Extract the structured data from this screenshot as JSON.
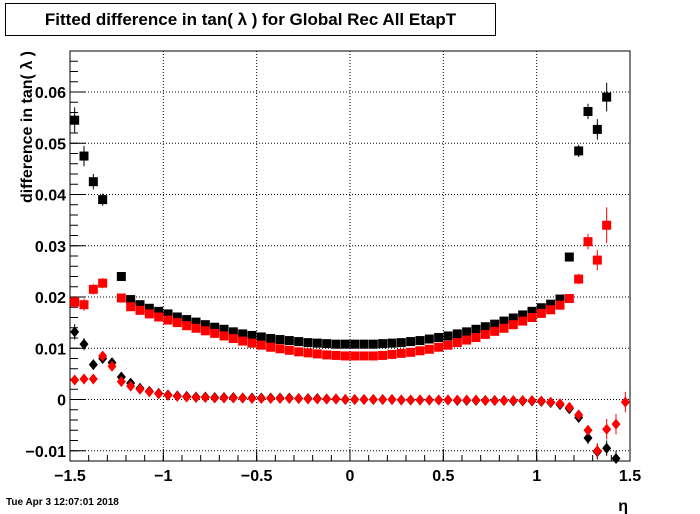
{
  "title": "Fitted difference in tan( λ ) for Global Rec All EtapT",
  "timestamp": "Tue Apr  3 12:07:01 2018",
  "chart_data": {
    "type": "scatter",
    "title": "Fitted difference in tan( λ ) for Global Rec All EtapT",
    "xlabel": "η",
    "ylabel": "difference in tan( λ )",
    "xlim": [
      -1.5,
      1.5
    ],
    "ylim": [
      -0.012,
      0.068
    ],
    "xticks": [
      -1.5,
      -1,
      -0.5,
      0,
      0.5,
      1,
      1.5
    ],
    "xtick_labels": [
      "−1.5",
      "−1",
      "−0.5",
      "0",
      "0.5",
      "1",
      "1.5"
    ],
    "yticks": [
      -0.01,
      0,
      0.01,
      0.02,
      0.03,
      0.04,
      0.05,
      0.06
    ],
    "ytick_labels": [
      "−0.01",
      "0",
      "0.01",
      "0.02",
      "0.03",
      "0.04",
      "0.05",
      "0.06"
    ],
    "grid": true,
    "x": [
      -1.475,
      -1.425,
      -1.375,
      -1.325,
      -1.275,
      -1.225,
      -1.175,
      -1.125,
      -1.075,
      -1.025,
      -0.975,
      -0.925,
      -0.875,
      -0.825,
      -0.775,
      -0.725,
      -0.675,
      -0.625,
      -0.575,
      -0.525,
      -0.475,
      -0.425,
      -0.375,
      -0.325,
      -0.275,
      -0.225,
      -0.175,
      -0.125,
      -0.075,
      -0.025,
      0.025,
      0.075,
      0.125,
      0.175,
      0.225,
      0.275,
      0.325,
      0.375,
      0.425,
      0.475,
      0.525,
      0.575,
      0.625,
      0.675,
      0.725,
      0.775,
      0.825,
      0.875,
      0.925,
      0.975,
      1.025,
      1.075,
      1.125,
      1.175,
      1.225,
      1.275,
      1.325,
      1.375,
      1.425,
      1.475
    ],
    "series": [
      {
        "marker": "square",
        "color": "#000000",
        "values": [
          0.0545,
          0.0475,
          0.0425,
          0.039,
          null,
          0.024,
          0.0195,
          0.0185,
          0.0178,
          0.0172,
          0.0167,
          0.0161,
          0.0156,
          0.0151,
          0.0146,
          0.0141,
          0.0137,
          0.0132,
          0.0128,
          0.0125,
          0.0122,
          0.0119,
          0.0117,
          0.0115,
          0.0113,
          0.0111,
          0.011,
          0.0109,
          0.0108,
          0.0108,
          0.0108,
          0.0108,
          0.0108,
          0.0109,
          0.011,
          0.0111,
          0.0113,
          0.0115,
          0.0118,
          0.0121,
          0.0124,
          0.0128,
          0.0132,
          0.0137,
          0.0142,
          0.0147,
          0.0153,
          0.0159,
          0.0165,
          0.0172,
          0.0179,
          0.0186,
          0.0196,
          0.0278,
          0.0485,
          0.0562,
          0.0527,
          0.059,
          null,
          null
        ],
        "errors": [
          0.0025,
          0.002,
          0.0015,
          0.0012,
          0,
          0.0005,
          0.0003,
          0.0002,
          0.0002,
          0.0002,
          0.0002,
          0.0002,
          0.0002,
          0.0002,
          0.0002,
          0.0002,
          0.0002,
          0.0002,
          0.0002,
          0.0002,
          0.0002,
          0.0002,
          0.0002,
          0.0002,
          0.0002,
          0.0002,
          0.0002,
          0.0002,
          0.0002,
          0.0002,
          0.0002,
          0.0002,
          0.0002,
          0.0002,
          0.0002,
          0.0002,
          0.0002,
          0.0002,
          0.0002,
          0.0002,
          0.0002,
          0.0002,
          0.0002,
          0.0002,
          0.0002,
          0.0002,
          0.0002,
          0.0002,
          0.0002,
          0.0002,
          0.0002,
          0.0002,
          0.0003,
          0.0005,
          0.0012,
          0.0015,
          0.002,
          0.0028,
          0,
          0
        ]
      },
      {
        "marker": "square",
        "color": "#ff0000",
        "values": [
          0.019,
          0.0185,
          0.0215,
          0.0227,
          null,
          0.0198,
          0.0181,
          0.0174,
          0.0167,
          0.0161,
          0.0155,
          0.015,
          0.0144,
          0.0139,
          0.0134,
          0.0129,
          0.0124,
          0.0119,
          0.0114,
          0.011,
          0.0106,
          0.0102,
          0.0099,
          0.0096,
          0.0093,
          0.0091,
          0.0089,
          0.0087,
          0.0086,
          0.0085,
          0.0085,
          0.0085,
          0.0085,
          0.0086,
          0.0088,
          0.009,
          0.0092,
          0.0095,
          0.0098,
          0.0102,
          0.0106,
          0.0111,
          0.0116,
          0.0121,
          0.0127,
          0.0133,
          0.0139,
          0.0146,
          0.0153,
          0.016,
          0.0168,
          0.0175,
          0.0184,
          0.0197,
          0.0235,
          0.0308,
          0.0272,
          0.034,
          null,
          null
        ],
        "errors": [
          0.0012,
          0.0012,
          0.001,
          0.001,
          0,
          0.0005,
          0.0003,
          0.0002,
          0.0002,
          0.0002,
          0.0002,
          0.0002,
          0.0002,
          0.0002,
          0.0002,
          0.0002,
          0.0002,
          0.0002,
          0.0002,
          0.0002,
          0.0002,
          0.0002,
          0.0002,
          0.0002,
          0.0002,
          0.0002,
          0.0002,
          0.0002,
          0.0002,
          0.0002,
          0.0002,
          0.0002,
          0.0002,
          0.0002,
          0.0002,
          0.0002,
          0.0002,
          0.0002,
          0.0002,
          0.0002,
          0.0002,
          0.0002,
          0.0002,
          0.0002,
          0.0002,
          0.0002,
          0.0002,
          0.0002,
          0.0002,
          0.0002,
          0.0002,
          0.0002,
          0.0003,
          0.0005,
          0.001,
          0.0015,
          0.002,
          0.0035,
          0,
          0
        ]
      },
      {
        "marker": "diamond",
        "color": "#000000",
        "values": [
          0.0132,
          0.0108,
          0.0068,
          0.008,
          0.0072,
          0.0044,
          0.0032,
          0.0022,
          0.0016,
          0.0012,
          0.0009,
          0.0007,
          0.0006,
          0.0005,
          0.0005,
          0.0004,
          0.0004,
          0.0004,
          0.0003,
          0.0003,
          0.0003,
          0.0003,
          0.0003,
          0.0003,
          0.0002,
          0.0002,
          0.0002,
          0.0001,
          0.0001,
          0.0,
          0.0,
          0.0,
          0.0,
          0.0,
          0.0,
          -0.0001,
          -0.0001,
          -0.0001,
          -0.0001,
          -0.0001,
          -0.0001,
          -0.0002,
          -0.0002,
          -0.0002,
          -0.0002,
          -0.0002,
          -0.0002,
          -0.0003,
          -0.0003,
          -0.0003,
          -0.0004,
          -0.0006,
          -0.001,
          -0.0018,
          -0.0035,
          -0.0075,
          -0.0102,
          -0.0095,
          -0.0115,
          null
        ],
        "errors": [
          0.0015,
          0.0012,
          0.001,
          0.0008,
          0.0007,
          0.0005,
          0.0003,
          0.0002,
          0.0002,
          0.0002,
          0.0002,
          0.0002,
          0.0002,
          0.0002,
          0.0002,
          0.0002,
          0.0002,
          0.0002,
          0.0002,
          0.0002,
          0.0002,
          0.0002,
          0.0002,
          0.0002,
          0.0002,
          0.0002,
          0.0002,
          0.0002,
          0.0002,
          0.0002,
          0.0002,
          0.0002,
          0.0002,
          0.0002,
          0.0002,
          0.0002,
          0.0002,
          0.0002,
          0.0002,
          0.0002,
          0.0002,
          0.0002,
          0.0002,
          0.0002,
          0.0002,
          0.0002,
          0.0002,
          0.0002,
          0.0002,
          0.0002,
          0.0002,
          0.0002,
          0.0003,
          0.0005,
          0.0007,
          0.0012,
          0.0015,
          0.0015,
          0.0015,
          0
        ]
      },
      {
        "marker": "diamond",
        "color": "#ff0000",
        "values": [
          0.0038,
          0.004,
          0.004,
          0.0085,
          0.0065,
          0.0035,
          0.0026,
          0.002,
          0.0015,
          0.0011,
          0.0008,
          0.0006,
          0.0005,
          0.0004,
          0.0004,
          0.0003,
          0.0003,
          0.0003,
          0.0003,
          0.0002,
          0.0002,
          0.0002,
          0.0002,
          0.0002,
          0.0002,
          0.0001,
          0.0001,
          0.0001,
          0.0001,
          0.0,
          0.0,
          0.0,
          0.0,
          0.0,
          0.0,
          -0.0001,
          -0.0001,
          -0.0001,
          -0.0001,
          -0.0001,
          -0.0001,
          -0.0001,
          -0.0001,
          -0.0001,
          -0.0002,
          -0.0002,
          -0.0002,
          -0.0002,
          -0.0002,
          -0.0002,
          -0.0003,
          -0.0005,
          -0.0008,
          -0.0015,
          -0.003,
          -0.006,
          -0.01,
          -0.0058,
          -0.0048,
          -0.0005
        ],
        "errors": [
          0.001,
          0.001,
          0.0008,
          0.0008,
          0.0007,
          0.0005,
          0.0003,
          0.0002,
          0.0002,
          0.0002,
          0.0002,
          0.0002,
          0.0002,
          0.0002,
          0.0002,
          0.0002,
          0.0002,
          0.0002,
          0.0002,
          0.0002,
          0.0002,
          0.0002,
          0.0002,
          0.0002,
          0.0002,
          0.0002,
          0.0002,
          0.0002,
          0.0002,
          0.0002,
          0.0002,
          0.0002,
          0.0002,
          0.0002,
          0.0002,
          0.0002,
          0.0002,
          0.0002,
          0.0002,
          0.0002,
          0.0002,
          0.0002,
          0.0002,
          0.0002,
          0.0002,
          0.0002,
          0.0002,
          0.0002,
          0.0002,
          0.0002,
          0.0002,
          0.0002,
          0.0003,
          0.0005,
          0.0008,
          0.001,
          0.0015,
          0.002,
          0.002,
          0.002
        ]
      }
    ]
  }
}
